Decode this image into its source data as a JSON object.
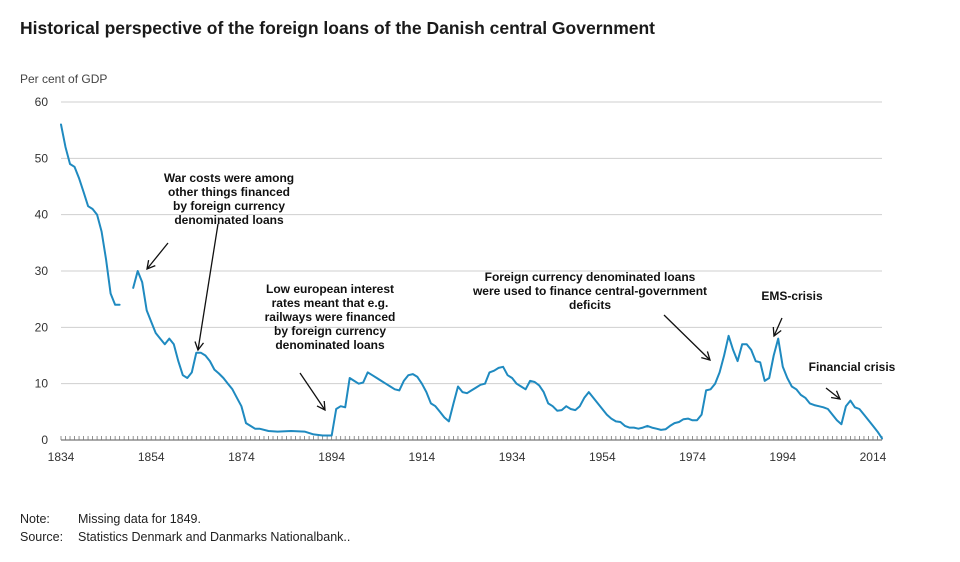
{
  "title": "Historical perspective of the foreign loans of the Danish central Government",
  "note_label": "Note:",
  "note_text": "Missing data for 1849.",
  "source_label": "Source:",
  "source_text": "Statistics Denmark and Danmarks Nationalbank..",
  "chart_data": {
    "type": "line",
    "ylabel": "Per cent of GDP",
    "ylim": [
      0,
      60
    ],
    "yticks": [
      0,
      10,
      20,
      30,
      40,
      50,
      60
    ],
    "xlim": [
      1834,
      2016
    ],
    "xticks": [
      1834,
      1854,
      1874,
      1894,
      1914,
      1934,
      1954,
      1974,
      1994,
      2014
    ],
    "grid": true,
    "line_color": "#1f8ac0",
    "series": [
      {
        "segments": [
          [
            [
              1834,
              56
            ],
            [
              1835,
              52
            ],
            [
              1836,
              49
            ],
            [
              1837,
              48.5
            ],
            [
              1838,
              46.5
            ],
            [
              1839,
              44
            ],
            [
              1840,
              41.5
            ],
            [
              1841,
              41
            ],
            [
              1842,
              40
            ],
            [
              1843,
              37
            ],
            [
              1844,
              32
            ],
            [
              1845,
              26
            ],
            [
              1846,
              24
            ],
            [
              1847,
              24
            ]
          ],
          [
            [
              1850,
              27
            ],
            [
              1851,
              30
            ],
            [
              1852,
              28
            ],
            [
              1853,
              23
            ],
            [
              1854,
              21
            ],
            [
              1855,
              19
            ],
            [
              1856,
              18
            ],
            [
              1857,
              17
            ],
            [
              1858,
              18
            ],
            [
              1859,
              17
            ],
            [
              1860,
              14
            ],
            [
              1861,
              11.5
            ],
            [
              1862,
              11
            ],
            [
              1863,
              12
            ],
            [
              1864,
              15.5
            ],
            [
              1865,
              15.5
            ],
            [
              1866,
              15
            ],
            [
              1867,
              14
            ],
            [
              1868,
              12.5
            ],
            [
              1869,
              11.8
            ],
            [
              1870,
              11
            ],
            [
              1871,
              10
            ],
            [
              1872,
              9
            ],
            [
              1873,
              7.5
            ],
            [
              1874,
              6
            ],
            [
              1875,
              3
            ],
            [
              1876,
              2.5
            ],
            [
              1877,
              2
            ],
            [
              1878,
              2
            ],
            [
              1880,
              1.6
            ],
            [
              1882,
              1.5
            ],
            [
              1885,
              1.6
            ],
            [
              1888,
              1.5
            ],
            [
              1890,
              1
            ],
            [
              1892,
              0.8
            ],
            [
              1894,
              0.8
            ],
            [
              1895,
              5.5
            ],
            [
              1896,
              6
            ],
            [
              1897,
              5.8
            ],
            [
              1898,
              11
            ],
            [
              1899,
              10.5
            ],
            [
              1900,
              10
            ],
            [
              1901,
              10.2
            ],
            [
              1902,
              12
            ],
            [
              1903,
              11.5
            ],
            [
              1904,
              11
            ],
            [
              1905,
              10.5
            ],
            [
              1906,
              10
            ],
            [
              1907,
              9.5
            ],
            [
              1908,
              9
            ],
            [
              1909,
              8.8
            ],
            [
              1910,
              10.5
            ],
            [
              1911,
              11.5
            ],
            [
              1912,
              11.7
            ],
            [
              1913,
              11.2
            ],
            [
              1914,
              10
            ],
            [
              1915,
              8.5
            ],
            [
              1916,
              6.5
            ],
            [
              1917,
              6
            ],
            [
              1918,
              5
            ],
            [
              1919,
              4
            ],
            [
              1920,
              3.3
            ],
            [
              1921,
              6.5
            ],
            [
              1922,
              9.5
            ],
            [
              1923,
              8.5
            ],
            [
              1924,
              8.3
            ],
            [
              1925,
              8.8
            ],
            [
              1926,
              9.3
            ],
            [
              1927,
              9.8
            ],
            [
              1928,
              10
            ],
            [
              1929,
              12
            ],
            [
              1930,
              12.3
            ],
            [
              1931,
              12.8
            ],
            [
              1932,
              13
            ],
            [
              1933,
              11.5
            ],
            [
              1934,
              11
            ],
            [
              1935,
              10
            ],
            [
              1936,
              9.5
            ],
            [
              1937,
              9
            ],
            [
              1938,
              10.5
            ],
            [
              1939,
              10.3
            ],
            [
              1940,
              9.7
            ],
            [
              1941,
              8.5
            ],
            [
              1942,
              6.5
            ],
            [
              1943,
              6
            ],
            [
              1944,
              5.2
            ],
            [
              1945,
              5.3
            ],
            [
              1946,
              6
            ],
            [
              1947,
              5.5
            ],
            [
              1948,
              5.3
            ],
            [
              1949,
              6
            ],
            [
              1950,
              7.5
            ],
            [
              1951,
              8.5
            ],
            [
              1952,
              7.5
            ],
            [
              1953,
              6.5
            ],
            [
              1954,
              5.5
            ],
            [
              1955,
              4.5
            ],
            [
              1956,
              3.8
            ],
            [
              1957,
              3.3
            ],
            [
              1958,
              3.2
            ],
            [
              1959,
              2.5
            ],
            [
              1960,
              2.2
            ],
            [
              1961,
              2.2
            ],
            [
              1962,
              2
            ],
            [
              1963,
              2.2
            ],
            [
              1964,
              2.5
            ],
            [
              1965,
              2.2
            ],
            [
              1966,
              2
            ],
            [
              1967,
              1.8
            ],
            [
              1968,
              1.9
            ],
            [
              1969,
              2.5
            ],
            [
              1970,
              3
            ],
            [
              1971,
              3.2
            ],
            [
              1972,
              3.7
            ],
            [
              1973,
              3.8
            ],
            [
              1974,
              3.5
            ],
            [
              1975,
              3.5
            ],
            [
              1976,
              4.5
            ],
            [
              1977,
              8.8
            ],
            [
              1978,
              9
            ],
            [
              1979,
              10
            ],
            [
              1980,
              12
            ],
            [
              1981,
              15
            ],
            [
              1982,
              18.5
            ],
            [
              1983,
              16
            ],
            [
              1984,
              14
            ],
            [
              1985,
              17
            ],
            [
              1986,
              17
            ],
            [
              1987,
              16
            ],
            [
              1988,
              14
            ],
            [
              1989,
              13.8
            ],
            [
              1990,
              10.5
            ],
            [
              1991,
              11
            ],
            [
              1992,
              15
            ],
            [
              1993,
              18
            ],
            [
              1994,
              13
            ],
            [
              1995,
              11
            ],
            [
              1996,
              9.5
            ],
            [
              1997,
              9
            ],
            [
              1998,
              8
            ],
            [
              1999,
              7.5
            ],
            [
              2000,
              6.5
            ],
            [
              2001,
              6.2
            ],
            [
              2002,
              6
            ],
            [
              2003,
              5.8
            ],
            [
              2004,
              5.5
            ],
            [
              2005,
              4.5
            ],
            [
              2006,
              3.5
            ],
            [
              2007,
              2.8
            ],
            [
              2008,
              6
            ],
            [
              2009,
              7
            ],
            [
              2010,
              5.8
            ],
            [
              2011,
              5.5
            ],
            [
              2012,
              4.5
            ],
            [
              2013,
              3.5
            ],
            [
              2014,
              2.5
            ],
            [
              2015,
              1.5
            ],
            [
              2016,
              0.3
            ]
          ]
        ]
      }
    ],
    "annotations": [
      {
        "lines": [
          "War costs were among",
          "other things financed",
          "by foreign currency",
          "denominated loans"
        ]
      },
      {
        "lines": [
          "Low european interest",
          "rates meant that e.g.",
          "railways were financed",
          "by foreign currency",
          "denominated loans"
        ]
      },
      {
        "lines": [
          "Foreign currency denominated loans",
          "were used to finance central-government",
          "deficits"
        ]
      },
      {
        "lines": [
          "EMS-crisis"
        ]
      },
      {
        "lines": [
          "Financial crisis"
        ]
      }
    ]
  }
}
